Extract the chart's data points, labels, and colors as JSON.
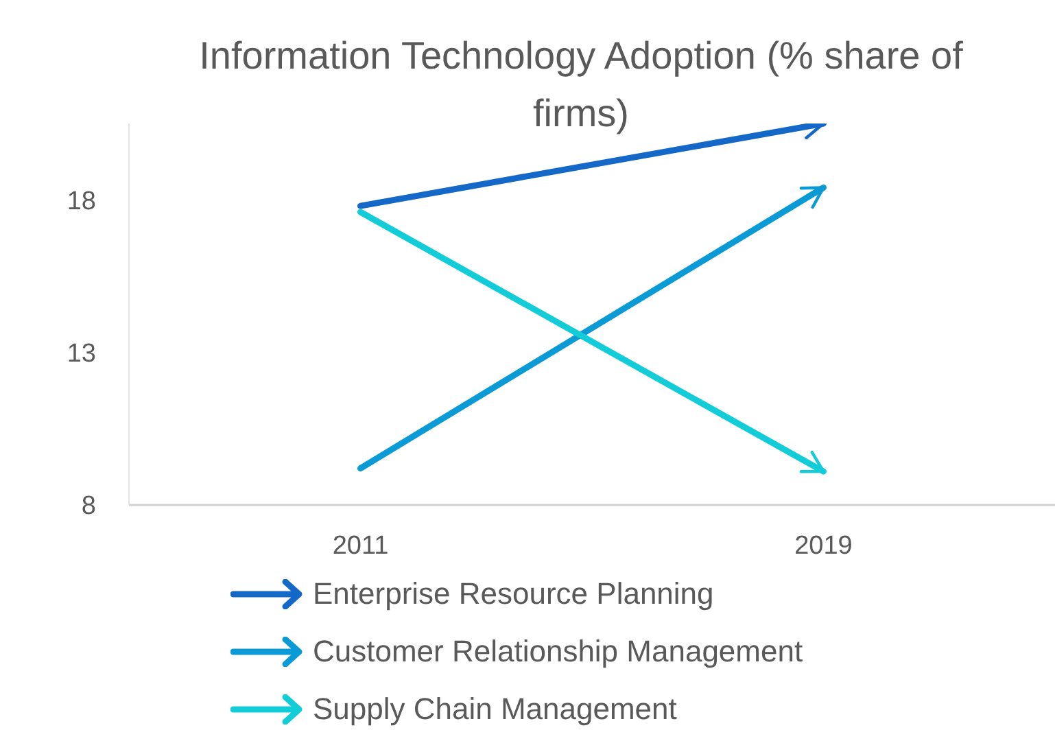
{
  "chart_data": {
    "type": "line",
    "title": "Information Technology Adoption (% share of firms)",
    "categories": [
      "2011",
      "2019"
    ],
    "series": [
      {
        "name": "Enterprise Resource Planning",
        "color": "#1469c8",
        "values": [
          17.8,
          20.5
        ]
      },
      {
        "name": "Customer Relationship Management",
        "color": "#0a9ad6",
        "values": [
          9.2,
          18.4
        ]
      },
      {
        "name": "Supply Chain Management",
        "color": "#12ccd8",
        "values": [
          17.6,
          9.1
        ]
      }
    ],
    "ylim": [
      8,
      20.5
    ],
    "yticks": [
      8,
      13,
      18
    ],
    "grid": false,
    "legend": "bottom",
    "marker": "none",
    "line_style": "solid"
  }
}
